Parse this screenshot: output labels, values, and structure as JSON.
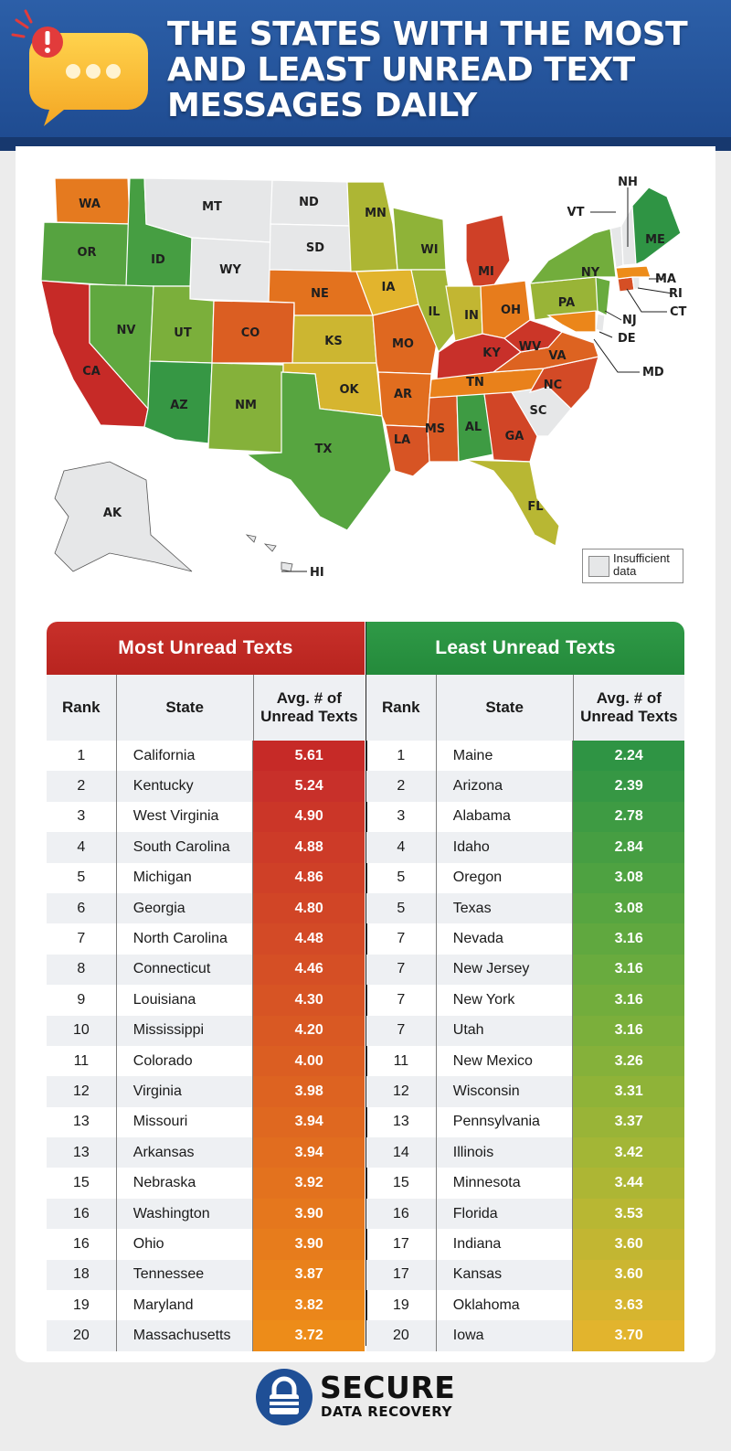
{
  "header": {
    "title": "THE STATES WITH THE MOST AND LEAST UNREAD TEXT MESSAGES DAILY",
    "icon": "chat-bubble-alert-icon"
  },
  "map": {
    "states": [
      "WA",
      "OR",
      "CA",
      "ID",
      "NV",
      "MT",
      "WY",
      "UT",
      "AZ",
      "CO",
      "NM",
      "ND",
      "SD",
      "NE",
      "KS",
      "OK",
      "TX",
      "MN",
      "IA",
      "MO",
      "AR",
      "LA",
      "WI",
      "IL",
      "MI",
      "IN",
      "OH",
      "KY",
      "TN",
      "MS",
      "AL",
      "GA",
      "FL",
      "SC",
      "NC",
      "VA",
      "WV",
      "PA",
      "NY",
      "ME",
      "AK",
      "HI"
    ],
    "callouts": [
      "NH",
      "VT",
      "MA",
      "RI",
      "CT",
      "NJ",
      "DE",
      "MD"
    ],
    "legend": "Insufficient data",
    "colors": {
      "insufficient": "#e6e7e8"
    }
  },
  "most": {
    "title": "Most Unread Texts",
    "headers": {
      "rank": "Rank",
      "state": "State",
      "value": "Avg. # of Unread Texts"
    },
    "rows": [
      {
        "rank": "1",
        "state": "California",
        "value": "5.61",
        "color": "#c62a27"
      },
      {
        "rank": "2",
        "state": "Kentucky",
        "value": "5.24",
        "color": "#c8302a"
      },
      {
        "rank": "3",
        "state": "West Virginia",
        "value": "4.90",
        "color": "#cb3628"
      },
      {
        "rank": "4",
        "state": "South Carolina",
        "value": "4.88",
        "color": "#cd3b28"
      },
      {
        "rank": "5",
        "state": "Michigan",
        "value": "4.86",
        "color": "#cf4027"
      },
      {
        "rank": "6",
        "state": "Georgia",
        "value": "4.80",
        "color": "#d14526"
      },
      {
        "rank": "7",
        "state": "North Carolina",
        "value": "4.48",
        "color": "#d34a26"
      },
      {
        "rank": "8",
        "state": "Connecticut",
        "value": "4.46",
        "color": "#d54f25"
      },
      {
        "rank": "9",
        "state": "Louisiana",
        "value": "4.30",
        "color": "#d75424"
      },
      {
        "rank": "10",
        "state": "Mississippi",
        "value": "4.20",
        "color": "#d95923"
      },
      {
        "rank": "11",
        "state": "Colorado",
        "value": "4.00",
        "color": "#db5e22"
      },
      {
        "rank": "12",
        "state": "Virginia",
        "value": "3.98",
        "color": "#dd6321"
      },
      {
        "rank": "13",
        "state": "Missouri",
        "value": "3.94",
        "color": "#df6820"
      },
      {
        "rank": "13",
        "state": "Arkansas",
        "value": "3.94",
        "color": "#e16d1f"
      },
      {
        "rank": "15",
        "state": "Nebraska",
        "value": "3.92",
        "color": "#e3721e"
      },
      {
        "rank": "16",
        "state": "Washington",
        "value": "3.90",
        "color": "#e5771d"
      },
      {
        "rank": "16",
        "state": "Ohio",
        "value": "3.90",
        "color": "#e77c1c"
      },
      {
        "rank": "18",
        "state": "Tennessee",
        "value": "3.87",
        "color": "#e9811b"
      },
      {
        "rank": "19",
        "state": "Maryland",
        "value": "3.82",
        "color": "#eb861a"
      },
      {
        "rank": "20",
        "state": "Massachusetts",
        "value": "3.72",
        "color": "#ed8c19"
      }
    ]
  },
  "least": {
    "title": "Least Unread Texts",
    "headers": {
      "rank": "Rank",
      "state": "State",
      "value": "Avg. # of Unread Texts"
    },
    "rows": [
      {
        "rank": "1",
        "state": "Maine",
        "value": "2.24",
        "color": "#2f9444"
      },
      {
        "rank": "2",
        "state": "Arizona",
        "value": "2.39",
        "color": "#369744"
      },
      {
        "rank": "3",
        "state": "Alabama",
        "value": "2.78",
        "color": "#3e9b43"
      },
      {
        "rank": "4",
        "state": "Idaho",
        "value": "2.84",
        "color": "#469e42"
      },
      {
        "rank": "5",
        "state": "Oregon",
        "value": "3.08",
        "color": "#4ea241"
      },
      {
        "rank": "5",
        "state": "Texas",
        "value": "3.08",
        "color": "#57a540"
      },
      {
        "rank": "7",
        "state": "Nevada",
        "value": "3.16",
        "color": "#60a83f"
      },
      {
        "rank": "7",
        "state": "New Jersey",
        "value": "3.16",
        "color": "#69ab3e"
      },
      {
        "rank": "7",
        "state": "New York",
        "value": "3.16",
        "color": "#72ad3c"
      },
      {
        "rank": "7",
        "state": "Utah",
        "value": "3.16",
        "color": "#7baf3b"
      },
      {
        "rank": "11",
        "state": "New Mexico",
        "value": "3.26",
        "color": "#85b13a"
      },
      {
        "rank": "12",
        "state": "Wisconsin",
        "value": "3.31",
        "color": "#8fb338"
      },
      {
        "rank": "13",
        "state": "Pennsylvania",
        "value": "3.37",
        "color": "#99b437"
      },
      {
        "rank": "14",
        "state": "Illinois",
        "value": "3.42",
        "color": "#a3b636"
      },
      {
        "rank": "15",
        "state": "Minnesota",
        "value": "3.44",
        "color": "#adb634"
      },
      {
        "rank": "16",
        "state": "Florida",
        "value": "3.53",
        "color": "#b8b733"
      },
      {
        "rank": "17",
        "state": "Indiana",
        "value": "3.60",
        "color": "#c2b632"
      },
      {
        "rank": "17",
        "state": "Kansas",
        "value": "3.60",
        "color": "#ccb631"
      },
      {
        "rank": "19",
        "state": "Oklahoma",
        "value": "3.63",
        "color": "#d6b52f"
      },
      {
        "rank": "20",
        "state": "Iowa",
        "value": "3.70",
        "color": "#e2b42d"
      }
    ]
  },
  "footer": {
    "logo_line1": "SECURE",
    "logo_line2": "DATA RECOVERY",
    "logo_icon": "padlock-icon"
  }
}
